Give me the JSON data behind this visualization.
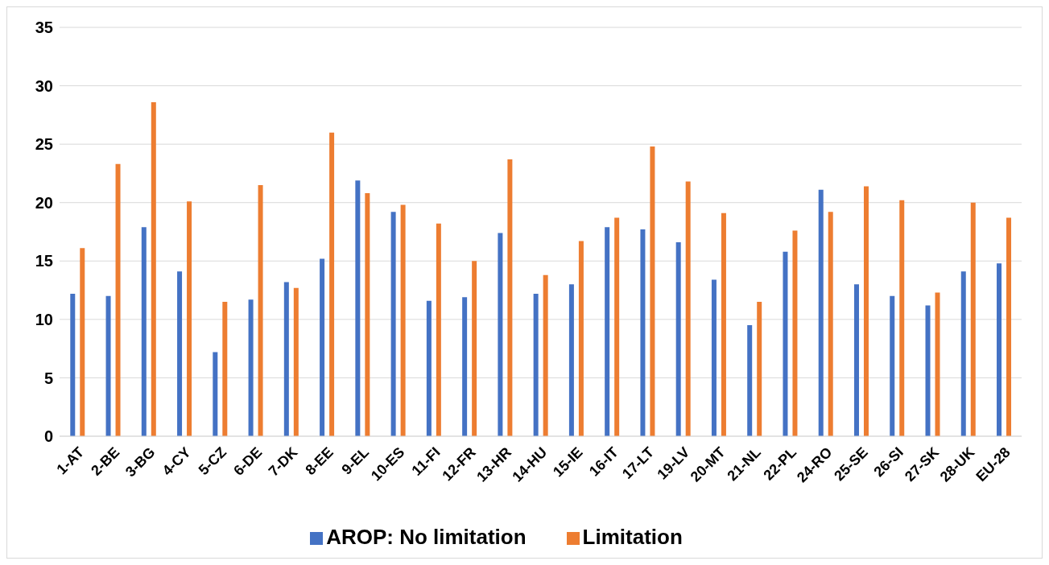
{
  "chart_data": {
    "type": "bar",
    "categories": [
      "1-AT",
      "2-BE",
      "3-BG",
      "4-CY",
      "5-CZ",
      "6-DE",
      "7-DK",
      "8-EE",
      "9-EL",
      "10-ES",
      "11-FI",
      "12-FR",
      "13-HR",
      "14-HU",
      "15-IE",
      "16-IT",
      "17-LT",
      "19-LV",
      "20-MT",
      "21-NL",
      "22-PL",
      "24-RO",
      "25-SE",
      "26-SI",
      "27-SK",
      "28-UK",
      "EU-28"
    ],
    "series": [
      {
        "name": "AROP: No limitation",
        "color": "#4472c4",
        "values": [
          12.2,
          12.0,
          17.9,
          14.1,
          7.2,
          11.7,
          13.2,
          15.2,
          21.9,
          19.2,
          11.6,
          11.9,
          17.4,
          12.2,
          13.0,
          17.9,
          17.7,
          16.6,
          13.4,
          9.5,
          15.8,
          21.1,
          13.0,
          12.0,
          11.2,
          14.1,
          14.8
        ]
      },
      {
        "name": "Limitation",
        "color": "#ed7d31",
        "values": [
          16.1,
          23.3,
          28.6,
          20.1,
          11.5,
          21.5,
          12.7,
          26.0,
          20.8,
          19.8,
          18.2,
          15.0,
          23.7,
          13.8,
          16.7,
          18.7,
          24.8,
          21.8,
          19.1,
          11.5,
          17.6,
          19.2,
          21.4,
          20.2,
          12.3,
          20.0,
          18.7
        ]
      }
    ],
    "ylim": [
      0,
      35
    ],
    "yticks": [
      0,
      5,
      10,
      15,
      20,
      25,
      30,
      35
    ],
    "grid": "y",
    "legend": "bottom"
  }
}
